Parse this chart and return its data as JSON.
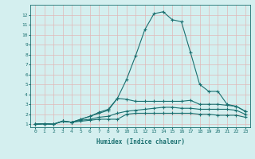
{
  "xlabel": "Humidex (Indice chaleur)",
  "x": [
    0,
    1,
    2,
    3,
    4,
    5,
    6,
    7,
    8,
    9,
    10,
    11,
    12,
    13,
    14,
    15,
    16,
    17,
    18,
    19,
    20,
    21,
    22,
    23
  ],
  "series": [
    [
      1.0,
      1.05,
      1.0,
      1.3,
      1.2,
      1.3,
      1.4,
      1.5,
      1.5,
      1.5,
      2.0,
      2.1,
      2.1,
      2.1,
      2.1,
      2.1,
      2.1,
      2.1,
      2.0,
      2.0,
      1.9,
      1.9,
      1.9,
      1.7
    ],
    [
      1.0,
      1.05,
      1.0,
      1.3,
      1.2,
      1.4,
      1.5,
      1.7,
      1.8,
      2.1,
      2.3,
      2.4,
      2.5,
      2.6,
      2.7,
      2.7,
      2.6,
      2.6,
      2.5,
      2.5,
      2.5,
      2.5,
      2.4,
      2.0
    ],
    [
      1.0,
      1.05,
      1.0,
      1.3,
      1.2,
      1.5,
      1.8,
      2.1,
      2.4,
      3.6,
      3.5,
      3.3,
      3.3,
      3.3,
      3.3,
      3.3,
      3.3,
      3.4,
      3.0,
      3.0,
      3.0,
      2.9,
      2.8,
      2.3
    ],
    [
      1.0,
      1.05,
      1.0,
      1.3,
      1.2,
      1.5,
      1.8,
      2.2,
      2.5,
      3.6,
      5.5,
      7.9,
      10.5,
      12.1,
      12.3,
      11.5,
      11.3,
      8.2,
      5.0,
      4.3,
      4.3,
      3.0,
      2.8,
      2.3
    ]
  ],
  "line_color": "#1a7070",
  "marker": "+",
  "markersize": 3,
  "linewidth": 0.8,
  "bg_color": "#d4efef",
  "grid_color": "#c8d8d8",
  "grid_color_major": "#e0b8b8",
  "tick_color": "#1a7070",
  "label_color": "#1a7070",
  "xlim": [
    -0.5,
    23.5
  ],
  "ylim": [
    0.7,
    13.0
  ],
  "yticks": [
    1,
    2,
    3,
    4,
    5,
    6,
    7,
    8,
    9,
    10,
    11,
    12
  ],
  "xticks": [
    0,
    1,
    2,
    3,
    4,
    5,
    6,
    7,
    8,
    9,
    10,
    11,
    12,
    13,
    14,
    15,
    16,
    17,
    18,
    19,
    20,
    21,
    22,
    23
  ]
}
